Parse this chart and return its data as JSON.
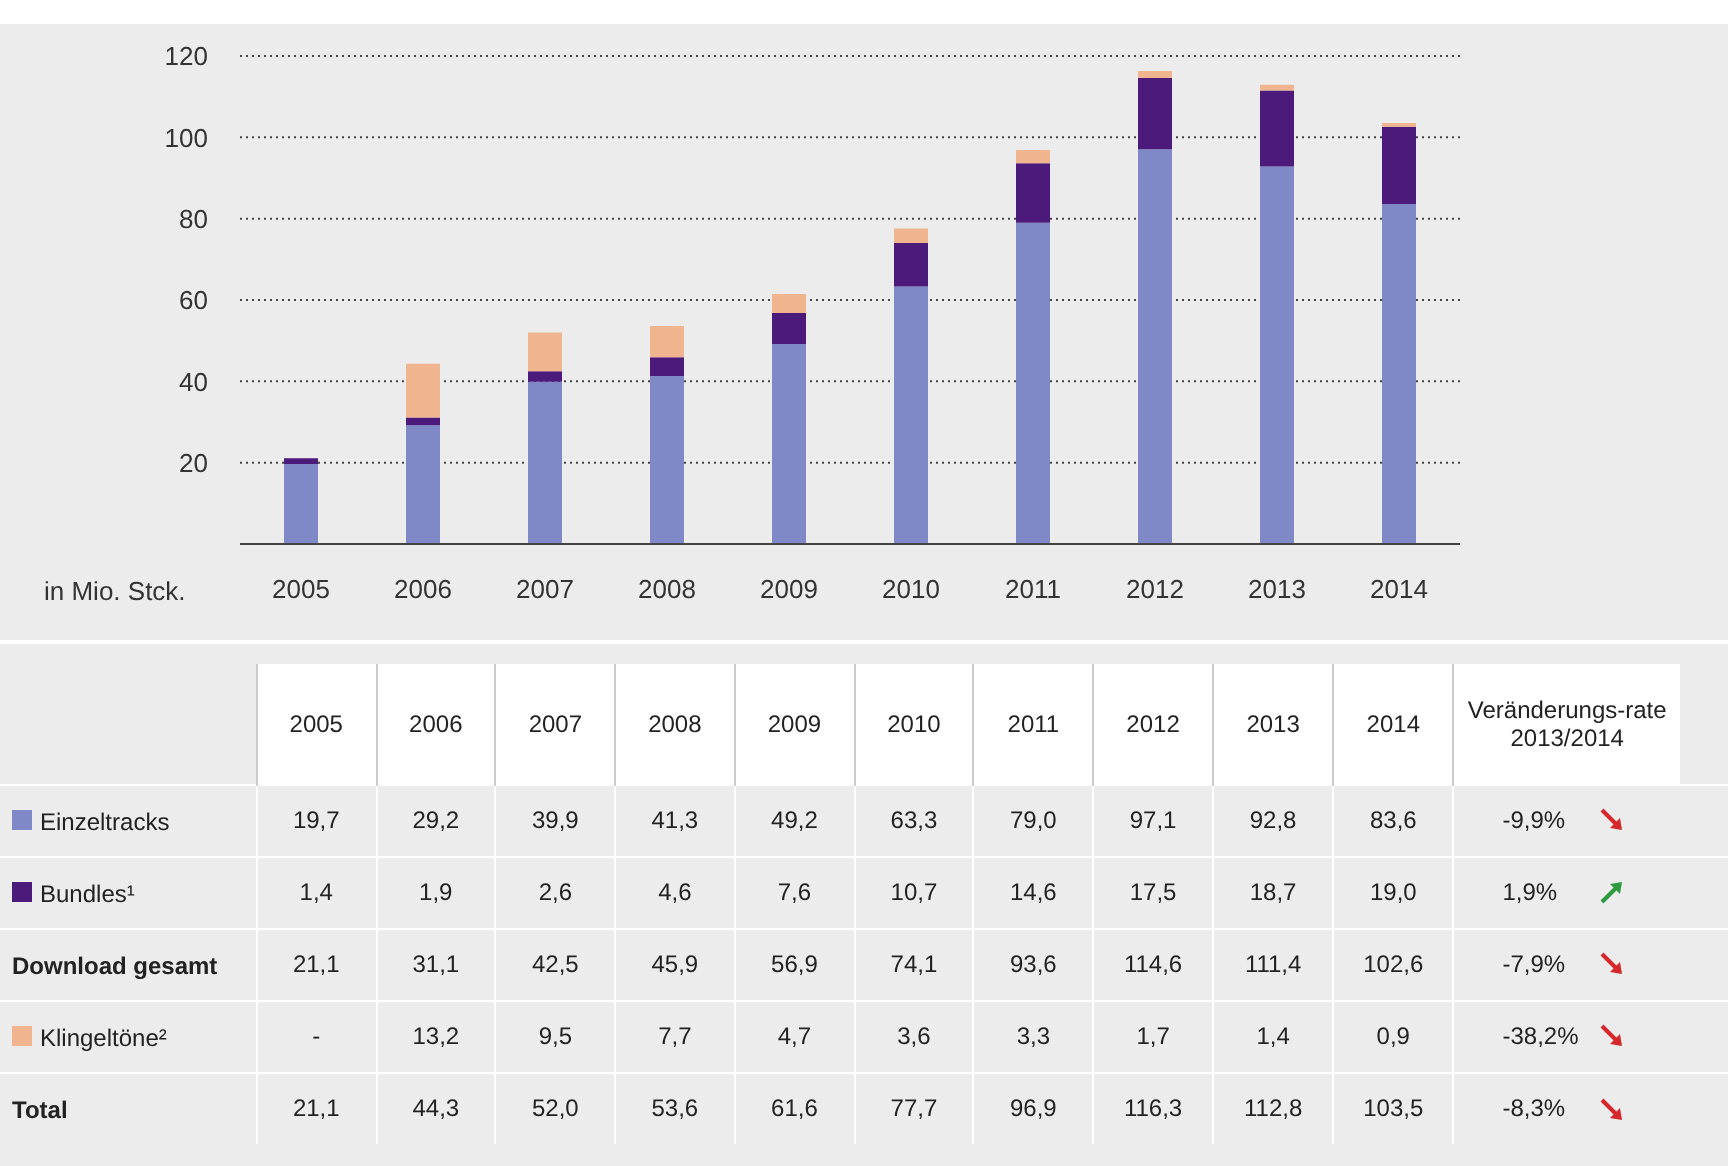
{
  "chart_data": {
    "type": "bar",
    "stacked": true,
    "ylabel": "in Mio. Stck.",
    "categories": [
      "2005",
      "2006",
      "2007",
      "2008",
      "2009",
      "2010",
      "2011",
      "2012",
      "2013",
      "2014"
    ],
    "series": [
      {
        "name": "Einzeltracks",
        "color": "#7f89c8",
        "values": [
          19.7,
          29.2,
          39.9,
          41.3,
          49.2,
          63.3,
          79.0,
          97.1,
          92.8,
          83.6
        ],
        "value_labels": [
          "19,7",
          "29,2",
          "39,9",
          "41,3",
          "49,2",
          "63,3",
          "79,0",
          "97,1",
          "92,8",
          "83,6"
        ]
      },
      {
        "name": "Bundles¹",
        "color": "#4b1a7a",
        "values": [
          1.4,
          1.9,
          2.6,
          4.6,
          7.6,
          10.7,
          14.6,
          17.5,
          18.7,
          19.0
        ],
        "value_labels": [
          "1,4",
          "1,9",
          "2,6",
          "4,6",
          "7,6",
          "10,7",
          "14,6",
          "17,5",
          "18,7",
          "19,0"
        ]
      },
      {
        "name": "Klingeltöne²",
        "color": "#f0b48f",
        "values": [
          null,
          13.2,
          9.5,
          7.7,
          4.7,
          3.6,
          3.3,
          1.7,
          1.4,
          0.9
        ],
        "value_labels": [
          "-",
          "13,2",
          "9,5",
          "7,7",
          "4,7",
          "3,6",
          "3,3",
          "1,7",
          "1,4",
          "0,9"
        ]
      }
    ],
    "legend": "bottom left",
    "ylim": [
      0,
      120
    ],
    "yticks": [
      20,
      40,
      60,
      80,
      100,
      120
    ],
    "grid": "y",
    "annotations": [
      "Veränderungs-rate 2013/2014",
      "-9,9%",
      "1,9%",
      "-7,9%",
      "-38,2%",
      "-8,3%",
      "Download gesamt",
      "21,1",
      "31,1",
      "42,5",
      "45,9",
      "56,9",
      "74,1",
      "93,6",
      "114,6",
      "111,4",
      "102,6",
      "Total",
      "21,1",
      "44,3",
      "52,0",
      "53,6",
      "61,6",
      "77,7",
      "96,9",
      "116,3",
      "112,8",
      "103,5"
    ]
  }
}
